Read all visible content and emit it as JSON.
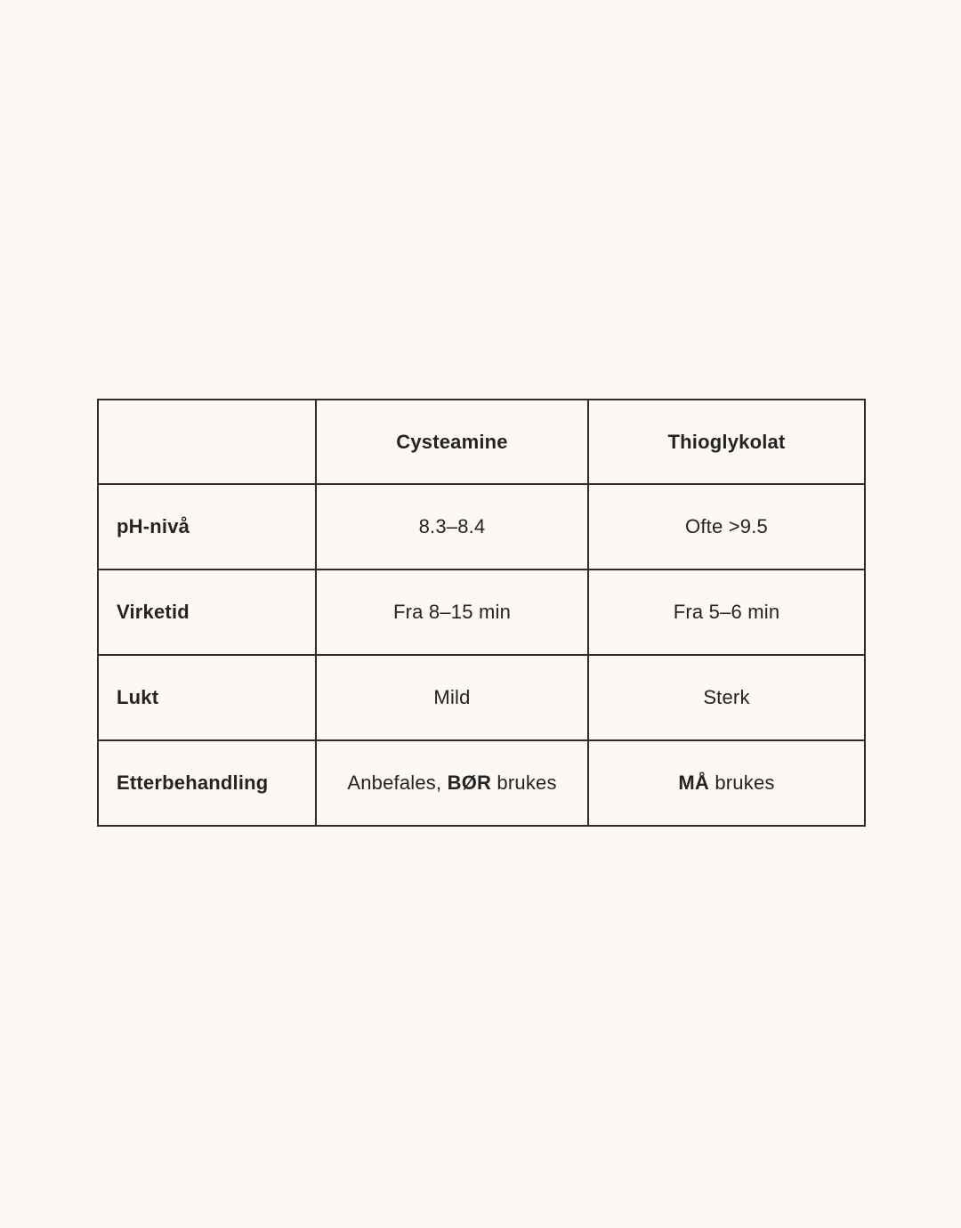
{
  "colors": {
    "background": "#FDF8F4",
    "table_border": "#2B2B2B",
    "text": "#232323"
  },
  "chart_data": {
    "type": "table",
    "columns": [
      "",
      "Cysteamine",
      "Thioglykolat"
    ],
    "rows": [
      {
        "label": "pH-nivå",
        "cysteamine": "8.3–8.4",
        "thioglykolat": "Ofte >9.5"
      },
      {
        "label": "Virketid",
        "cysteamine": "Fra 8–15 min",
        "thioglykolat": "Fra 5–6 min"
      },
      {
        "label": "Lukt",
        "cysteamine": "Mild",
        "thioglykolat": "Sterk"
      },
      {
        "label": "Etterbehandling",
        "cysteamine": "Anbefales, BØR brukes",
        "thioglykolat": "MÅ brukes",
        "cysteamine_parts": {
          "pre": "Anbefales, ",
          "bold": "BØR",
          "post": " brukes"
        },
        "thioglykolat_parts": {
          "bold": "MÅ",
          "post": " brukes"
        }
      }
    ],
    "title": "",
    "legend": false,
    "grid": true
  }
}
